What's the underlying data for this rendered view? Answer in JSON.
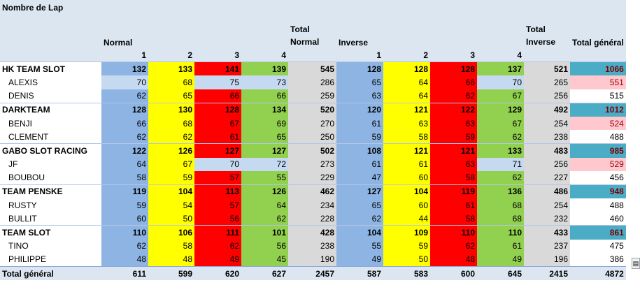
{
  "title": "Nombre de Lap",
  "headers": {
    "normal": "Normal",
    "total_normal": "Total Normal",
    "inverse": "Inverse",
    "total_inverse": "Total Inverse",
    "total_general": "Total général",
    "laps": [
      "1",
      "2",
      "3",
      "4"
    ]
  },
  "colors": {
    "col1": "#8db4e2",
    "col2": "#ffff00",
    "col3": "#ff0000",
    "col4": "#92d050",
    "total": "#d9d9d9",
    "grand_total_group": "#4bacc6",
    "grand_total_highlight": "#ffc7ce"
  },
  "rows": [
    {
      "label": "HK TEAM SLOT",
      "group": true,
      "normal": [
        "132",
        "133",
        "141",
        "139"
      ],
      "total_normal": "545",
      "inverse": [
        "128",
        "128",
        "128",
        "137"
      ],
      "total_inverse": "521",
      "total": "1066"
    },
    {
      "label": "ALEXIS",
      "group": false,
      "normal": [
        "70",
        "68",
        "75",
        "73"
      ],
      "total_normal": "286",
      "inverse": [
        "65",
        "64",
        "66",
        "70"
      ],
      "total_inverse": "265",
      "total": "551"
    },
    {
      "label": "DENIS",
      "group": false,
      "normal": [
        "62",
        "65",
        "66",
        "66"
      ],
      "total_normal": "259",
      "inverse": [
        "63",
        "64",
        "62",
        "67"
      ],
      "total_inverse": "256",
      "total": "515"
    },
    {
      "label": "DARKTEAM",
      "group": true,
      "normal": [
        "128",
        "130",
        "128",
        "134"
      ],
      "total_normal": "520",
      "inverse": [
        "120",
        "121",
        "122",
        "129"
      ],
      "total_inverse": "492",
      "total": "1012"
    },
    {
      "label": "BENJI",
      "group": false,
      "normal": [
        "66",
        "68",
        "67",
        "69"
      ],
      "total_normal": "270",
      "inverse": [
        "61",
        "63",
        "63",
        "67"
      ],
      "total_inverse": "254",
      "total": "524"
    },
    {
      "label": "CLEMENT",
      "group": false,
      "normal": [
        "62",
        "62",
        "61",
        "65"
      ],
      "total_normal": "250",
      "inverse": [
        "59",
        "58",
        "59",
        "62"
      ],
      "total_inverse": "238",
      "total": "488"
    },
    {
      "label": "GABO SLOT RACING",
      "group": true,
      "normal": [
        "122",
        "126",
        "127",
        "127"
      ],
      "total_normal": "502",
      "inverse": [
        "108",
        "121",
        "121",
        "133"
      ],
      "total_inverse": "483",
      "total": "985"
    },
    {
      "label": "JF",
      "group": false,
      "normal": [
        "64",
        "67",
        "70",
        "72"
      ],
      "total_normal": "273",
      "inverse": [
        "61",
        "61",
        "63",
        "71"
      ],
      "total_inverse": "256",
      "total": "529"
    },
    {
      "label": "BOUBOU",
      "group": false,
      "normal": [
        "58",
        "59",
        "57",
        "55"
      ],
      "total_normal": "229",
      "inverse": [
        "47",
        "60",
        "58",
        "62"
      ],
      "total_inverse": "227",
      "total": "456"
    },
    {
      "label": "TEAM PENSKE",
      "group": true,
      "normal": [
        "119",
        "104",
        "113",
        "126"
      ],
      "total_normal": "462",
      "inverse": [
        "127",
        "104",
        "119",
        "136"
      ],
      "total_inverse": "486",
      "total": "948"
    },
    {
      "label": "RUSTY",
      "group": false,
      "normal": [
        "59",
        "54",
        "57",
        "64"
      ],
      "total_normal": "234",
      "inverse": [
        "65",
        "60",
        "61",
        "68"
      ],
      "total_inverse": "254",
      "total": "488"
    },
    {
      "label": "BULLIT",
      "group": false,
      "normal": [
        "60",
        "50",
        "56",
        "62"
      ],
      "total_normal": "228",
      "inverse": [
        "62",
        "44",
        "58",
        "68"
      ],
      "total_inverse": "232",
      "total": "460"
    },
    {
      "label": "TEAM SLOT",
      "group": true,
      "normal": [
        "110",
        "106",
        "111",
        "101"
      ],
      "total_normal": "428",
      "inverse": [
        "104",
        "109",
        "110",
        "110"
      ],
      "total_inverse": "433",
      "total": "861"
    },
    {
      "label": "TINO",
      "group": false,
      "normal": [
        "62",
        "58",
        "62",
        "56"
      ],
      "total_normal": "238",
      "inverse": [
        "55",
        "59",
        "62",
        "61"
      ],
      "total_inverse": "237",
      "total": "475"
    },
    {
      "label": "PHILIPPE",
      "group": false,
      "normal": [
        "48",
        "48",
        "49",
        "45"
      ],
      "total_normal": "190",
      "inverse": [
        "49",
        "50",
        "48",
        "49"
      ],
      "total_inverse": "196",
      "total": "386"
    }
  ],
  "grand_total": {
    "label": "Total général",
    "normal": [
      "611",
      "599",
      "620",
      "627"
    ],
    "total_normal": "2457",
    "inverse": [
      "587",
      "583",
      "600",
      "645"
    ],
    "total_inverse": "2415",
    "total": "4872"
  }
}
